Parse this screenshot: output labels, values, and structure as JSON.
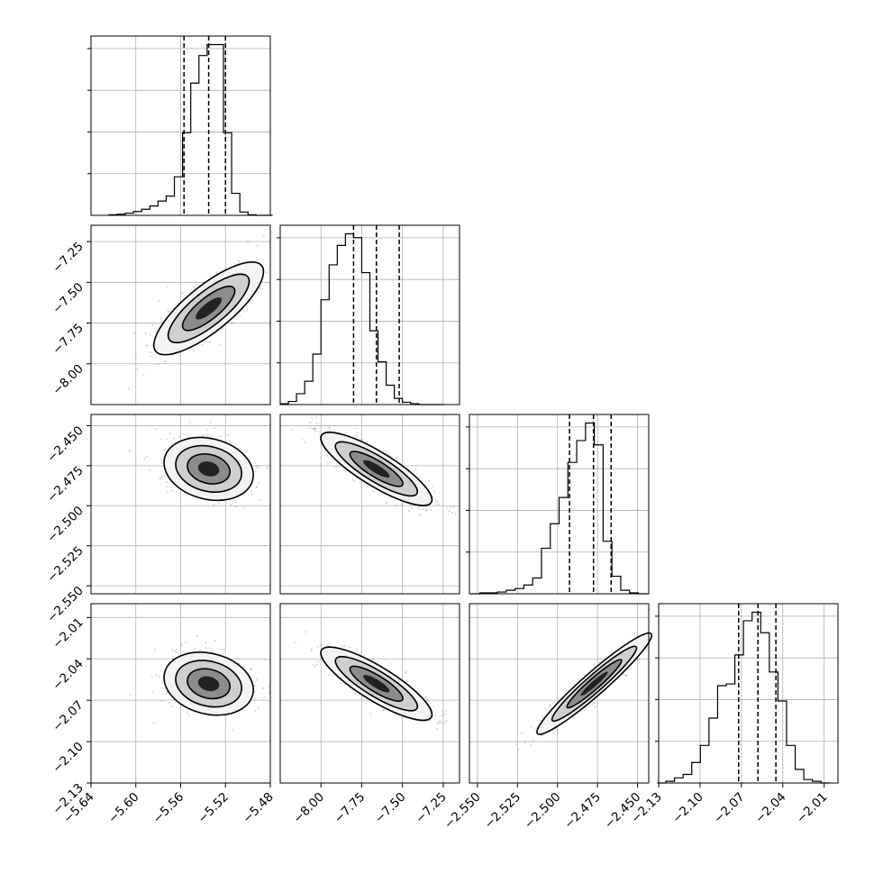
{
  "chart_data": {
    "type": "corner",
    "parameters": [
      {
        "ticks": [
          -5.64,
          -5.6,
          -5.56,
          -5.52,
          -5.48
        ],
        "tick_labels": [
          "−5.64",
          "−5.60",
          "−5.56",
          "−5.52",
          "−5.48"
        ],
        "range": [
          -5.64,
          -5.48
        ],
        "hist_edges_start": -5.624,
        "hist_bin_width": 0.0073,
        "hist_counts": [
          1,
          2,
          4,
          7,
          11,
          17,
          26,
          35,
          70,
          150,
          240,
          290,
          310,
          310,
          150,
          40,
          6,
          1,
          0,
          0
        ],
        "quantiles": [
          -5.557,
          -5.535,
          -5.52
        ]
      },
      {
        "ticks": [
          -8.0,
          -7.75,
          -7.5,
          -7.25
        ],
        "tick_labels": [
          "−8.00",
          "−7.75",
          "−7.50",
          "−7.25"
        ],
        "range": [
          -8.25,
          -7.15
        ],
        "hist_edges_start": -8.25,
        "hist_bin_width": 0.05,
        "hist_counts": [
          1,
          4,
          14,
          30,
          65,
          135,
          180,
          205,
          220,
          215,
          170,
          95,
          55,
          25,
          8,
          3,
          1,
          0,
          0,
          0
        ],
        "quantiles": [
          -7.8,
          -7.66,
          -7.52
        ]
      },
      {
        "ticks": [
          -2.55,
          -2.525,
          -2.5,
          -2.475,
          -2.45
        ],
        "tick_labels": [
          "−2.550",
          "−2.525",
          "−2.500",
          "−2.475",
          "−2.450"
        ],
        "range": [
          -2.555,
          -2.443
        ],
        "hist_edges_start": -2.554,
        "hist_bin_width": 0.0055,
        "hist_counts": [
          0,
          1,
          1,
          2,
          4,
          6,
          10,
          18,
          52,
          80,
          110,
          150,
          175,
          195,
          170,
          60,
          20,
          4,
          1,
          0
        ],
        "quantiles": [
          -2.4925,
          -2.4775,
          -2.4665
        ]
      },
      {
        "ticks": [
          -2.13,
          -2.1,
          -2.07,
          -2.04,
          -2.01
        ],
        "tick_labels": [
          "−2.13",
          "−2.10",
          "−2.07",
          "−2.04",
          "−2.01"
        ],
        "range": [
          -2.13,
          -2.0
        ],
        "hist_edges_start": -2.131,
        "hist_bin_width": 0.00625,
        "hist_counts": [
          0,
          1,
          3,
          5,
          12,
          22,
          38,
          57,
          58,
          75,
          95,
          100,
          88,
          65,
          48,
          22,
          8,
          2,
          1,
          0
        ],
        "quantiles": [
          -2.072,
          -2.058,
          -2.045
        ]
      }
    ],
    "pair_centers": {
      "1_0": [
        -5.535,
        -7.66
      ],
      "2_0": [
        -5.535,
        -2.477
      ],
      "2_1": [
        -7.66,
        -2.477
      ],
      "3_0": [
        -5.535,
        -2.058
      ],
      "3_1": [
        -7.66,
        -2.058
      ],
      "3_2": [
        -2.477,
        -2.058
      ]
    },
    "grid": true,
    "colors": {
      "axis": "#000000",
      "grid": "#b0b0b0",
      "points": "#555555"
    }
  }
}
